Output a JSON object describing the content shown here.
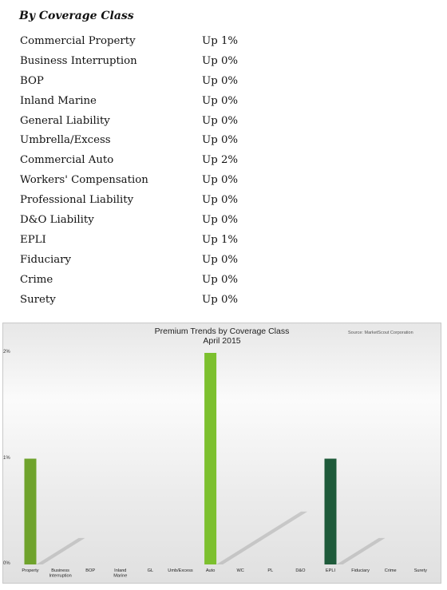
{
  "heading": "By Coverage Class",
  "rows": [
    {
      "label": "Commercial Property",
      "value": "Up 1%"
    },
    {
      "label": "Business Interruption",
      "value": "Up 0%"
    },
    {
      "label": "BOP",
      "value": "Up 0%"
    },
    {
      "label": "Inland Marine",
      "value": "Up 0%"
    },
    {
      "label": "General Liability",
      "value": "Up 0%"
    },
    {
      "label": "Umbrella/Excess",
      "value": "Up 0%"
    },
    {
      "label": "Commercial Auto",
      "value": "Up 2%"
    },
    {
      "label": "Workers' Compensation",
      "value": "Up 0%"
    },
    {
      "label": "Professional Liability",
      "value": "Up 0%"
    },
    {
      "label": "D&O Liability",
      "value": "Up 0%"
    },
    {
      "label": "EPLI",
      "value": "Up 1%"
    },
    {
      "label": "Fiduciary",
      "value": "Up 0%"
    },
    {
      "label": "Crime",
      "value": "Up 0%"
    },
    {
      "label": "Surety",
      "value": "Up 0%"
    }
  ],
  "chart_data": {
    "type": "bar",
    "title": "Premium Trends by Coverage Class",
    "subtitle": "April 2015",
    "source": "Source: MarketScout Corporation",
    "categories": [
      "Property",
      "Business\nInterruption",
      "BOP",
      "Inland\nMarine",
      "GL",
      "Umb/Excess",
      "Auto",
      "WC",
      "PL",
      "D&O",
      "EPLI",
      "Fiduciary",
      "Crime",
      "Surety"
    ],
    "values": [
      1,
      0,
      0,
      0,
      0,
      0,
      2,
      0,
      0,
      0,
      1,
      0,
      0,
      0
    ],
    "ytick_labels": [
      "0%",
      "1%",
      "2%"
    ],
    "ylim": [
      0,
      2
    ],
    "grid": false,
    "bar_colors": [
      "#6fa32c",
      "#6fa32c",
      "#6fa32c",
      "#6fa32c",
      "#6fa32c",
      "#6fa32c",
      "#7cc02e",
      "#7cc02e",
      "#7cc02e",
      "#7cc02e",
      "#1e5a3a",
      "#1e5a3a",
      "#1e5a3a",
      "#1e5a3a"
    ]
  }
}
